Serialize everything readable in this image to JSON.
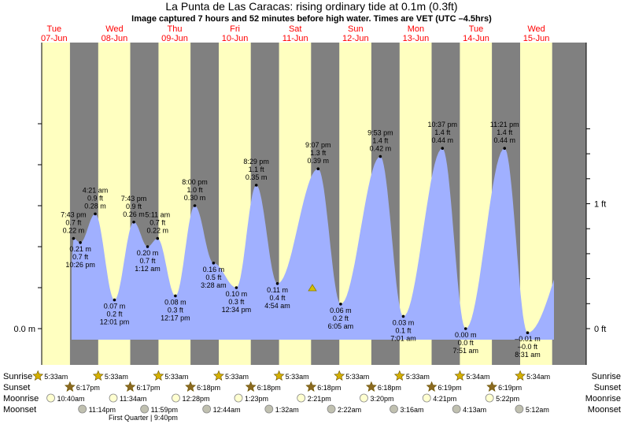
{
  "header": {
    "title": "La Punta de Las Caracas: rising  ordinary tide at 0.1m (0.3ft)",
    "subtitle": "Image captured 7 hours and 52 minutes before high water. Times are VET (UTC –4.5hrs)"
  },
  "colors": {
    "day": "#ffffc0",
    "night": "#808080",
    "water": "#a0b0ff",
    "day_label": "#ff0000",
    "sun_icon": "#d4b000",
    "sunset_icon": "#8b6a20",
    "moonrise_icon": "#ffffd0",
    "moonset_icon": "#c0c0b0",
    "marker": "#d4c000"
  },
  "chart_data": {
    "type": "area",
    "title": "La Punta de Las Caracas: rising  ordinary tide at 0.1m (0.3ft)",
    "left_axis": {
      "label": "m",
      "ticks": [
        {
          "value": 0,
          "label": "0.0 m"
        }
      ]
    },
    "right_axis": {
      "label": "ft",
      "ticks": [
        {
          "value": 0,
          "label": "0 ft"
        },
        {
          "value": 1,
          "label": "1 ft"
        }
      ]
    },
    "ylim_m": [
      -0.05,
      0.52
    ],
    "days": [
      {
        "name": "Tue",
        "date": "07-Jun"
      },
      {
        "name": "Wed",
        "date": "08-Jun"
      },
      {
        "name": "Thu",
        "date": "09-Jun"
      },
      {
        "name": "Fri",
        "date": "10-Jun"
      },
      {
        "name": "Sat",
        "date": "11-Jun"
      },
      {
        "name": "Sun",
        "date": "12-Jun"
      },
      {
        "name": "Mon",
        "date": "13-Jun"
      },
      {
        "name": "Tue",
        "date": "14-Jun"
      },
      {
        "name": "Wed",
        "date": "15-Jun"
      }
    ],
    "extremes": [
      {
        "day": 0,
        "time": "7:43 pm",
        "ft": "0.7 ft",
        "m": 0.22,
        "m_label": "0.22 m",
        "type": "high"
      },
      {
        "day": 0,
        "time": "10:26 pm",
        "ft": "0.7 ft",
        "m": 0.21,
        "m_label": "0.21 m",
        "type": "low"
      },
      {
        "day": 1,
        "time": "4:21 am",
        "ft": "0.9 ft",
        "m": 0.28,
        "m_label": "0.28 m",
        "type": "high"
      },
      {
        "day": 1,
        "time": "12:01 pm",
        "ft": "0.2 ft",
        "m": 0.07,
        "m_label": "0.07 m",
        "type": "low"
      },
      {
        "day": 1,
        "time": "7:43 pm",
        "ft": "0.9 ft",
        "m": 0.26,
        "m_label": "0.26 m",
        "type": "high"
      },
      {
        "day": 2,
        "time": "1:12 am",
        "ft": "0.7 ft",
        "m": 0.2,
        "m_label": "0.20 m",
        "type": "low"
      },
      {
        "day": 2,
        "time": "5:11 am",
        "ft": "0.7 ft",
        "m": 0.22,
        "m_label": "0.22 m",
        "type": "high"
      },
      {
        "day": 2,
        "time": "12:17 pm",
        "ft": "0.3 ft",
        "m": 0.08,
        "m_label": "0.08 m",
        "type": "low"
      },
      {
        "day": 2,
        "time": "8:00 pm",
        "ft": "1.0 ft",
        "m": 0.3,
        "m_label": "0.30 m",
        "type": "high"
      },
      {
        "day": 3,
        "time": "3:28 am",
        "ft": "0.5 ft",
        "m": 0.16,
        "m_label": "0.16 m",
        "type": "low"
      },
      {
        "day": 3,
        "time": "12:34 pm",
        "ft": "0.3 ft",
        "m": 0.1,
        "m_label": "0.10 m",
        "type": "low"
      },
      {
        "day": 3,
        "time": "8:29 pm",
        "ft": "1.1 ft",
        "m": 0.35,
        "m_label": "0.35 m",
        "type": "high"
      },
      {
        "day": 4,
        "time": "4:54 am",
        "ft": "0.4 ft",
        "m": 0.11,
        "m_label": "0.11 m",
        "type": "low"
      },
      {
        "day": 4,
        "time": "9:07 pm",
        "ft": "1.3 ft",
        "m": 0.39,
        "m_label": "0.39 m",
        "type": "high"
      },
      {
        "day": 5,
        "time": "6:05 am",
        "ft": "0.2 ft",
        "m": 0.06,
        "m_label": "0.06 m",
        "type": "low"
      },
      {
        "day": 5,
        "time": "9:53 pm",
        "ft": "1.4 ft",
        "m": 0.42,
        "m_label": "0.42 m",
        "type": "high"
      },
      {
        "day": 6,
        "time": "7:01 am",
        "ft": "0.1 ft",
        "m": 0.03,
        "m_label": "0.03 m",
        "type": "low"
      },
      {
        "day": 6,
        "time": "10:37 pm",
        "ft": "1.4 ft",
        "m": 0.44,
        "m_label": "0.44 m",
        "type": "high"
      },
      {
        "day": 7,
        "time": "7:51 am",
        "ft": "0.0 ft",
        "m": 0.0,
        "m_label": "0.00 m",
        "type": "low"
      },
      {
        "day": 7,
        "time": "11:21 pm",
        "ft": "1.4 ft",
        "m": 0.44,
        "m_label": "0.44 m",
        "type": "high"
      },
      {
        "day": 8,
        "time": "8:31 am",
        "ft": "–0.0 ft",
        "m": -0.01,
        "m_label": "–0.01 m",
        "type": "low"
      }
    ],
    "current_tide_m": 0.1
  },
  "legend": {
    "sunrise": "Sunrise",
    "sunset": "Sunset",
    "moonrise": "Moonrise",
    "moonset": "Moonset",
    "moon_phase": "First Quarter | 9:40pm",
    "sunrise_times": [
      "5:33am",
      "5:33am",
      "5:33am",
      "5:33am",
      "5:33am",
      "5:33am",
      "5:33am",
      "5:34am",
      "5:34am"
    ],
    "sunset_times": [
      "6:17pm",
      "6:17pm",
      "6:18pm",
      "6:18pm",
      "6:18pm",
      "6:18pm",
      "6:19pm",
      "6:19pm"
    ],
    "moonrise_times": [
      "10:40am",
      "11:34am",
      "12:28pm",
      "1:23pm",
      "2:21pm",
      "3:20pm",
      "4:21pm",
      "5:22pm"
    ],
    "moonset_times": [
      "11:14pm",
      "11:59pm",
      "12:44am",
      "1:32am",
      "2:22am",
      "3:16am",
      "4:13am",
      "5:12am"
    ]
  }
}
